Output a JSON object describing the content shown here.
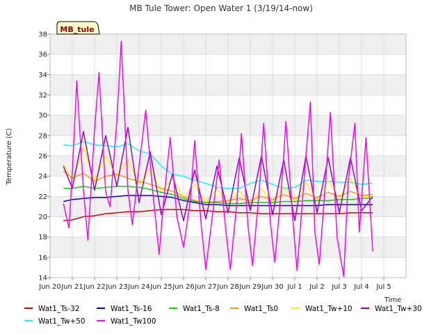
{
  "chart_data": {
    "type": "line",
    "title": "MB Tule Tower: Open Water 1 (3/19/14-now)",
    "xlabel": "Time",
    "ylabel": "Temperature (C)",
    "ylim": [
      14,
      38
    ],
    "xlim": [
      0,
      16
    ],
    "yticks": [
      14,
      16,
      18,
      20,
      22,
      24,
      26,
      28,
      30,
      32,
      34,
      36,
      38
    ],
    "xticks": [
      {
        "pos": 0,
        "label": "Jun 20"
      },
      {
        "pos": 1,
        "label": "Jun 21"
      },
      {
        "pos": 2,
        "label": "Jun 22"
      },
      {
        "pos": 3,
        "label": "Jun 23"
      },
      {
        "pos": 4,
        "label": "Jun 24"
      },
      {
        "pos": 5,
        "label": "Jun 25"
      },
      {
        "pos": 6,
        "label": "Jun 26"
      },
      {
        "pos": 7,
        "label": "Jun 27"
      },
      {
        "pos": 8,
        "label": "Jun 28"
      },
      {
        "pos": 9,
        "label": "Jun 29"
      },
      {
        "pos": 10,
        "label": "Jun 30"
      },
      {
        "pos": 11,
        "label": "Jul 1"
      },
      {
        "pos": 12,
        "label": "Jul 2"
      },
      {
        "pos": 13,
        "label": "Jul 3"
      },
      {
        "pos": 14,
        "label": "Jul 4"
      },
      {
        "pos": 15,
        "label": "Jul 5"
      }
    ],
    "badge": "MB_tule",
    "series": [
      {
        "name": "Wat1_Ts-32",
        "color": "#dd0000",
        "x": [
          0.6,
          1.0,
          1.5,
          2.0,
          2.5,
          3.0,
          3.5,
          4.0,
          4.5,
          5.0,
          5.5,
          6.0,
          6.5,
          7.0,
          7.5,
          8.0,
          8.5,
          9.0,
          9.5,
          10.0,
          10.5,
          11.0,
          11.5,
          12.0,
          12.5,
          13.0,
          13.5,
          14.0,
          14.5
        ],
        "y": [
          19.6,
          19.7,
          20.0,
          20.1,
          20.3,
          20.4,
          20.5,
          20.5,
          20.6,
          20.7,
          20.7,
          20.7,
          20.6,
          20.6,
          20.5,
          20.5,
          20.4,
          20.4,
          20.3,
          20.3,
          20.3,
          20.3,
          20.3,
          20.3,
          20.3,
          20.3,
          20.4,
          20.4,
          20.4
        ]
      },
      {
        "name": "Wat1_Ts-16",
        "color": "#0000cc",
        "x": [
          0.6,
          1.0,
          1.5,
          2.0,
          2.5,
          3.0,
          3.5,
          4.0,
          4.5,
          5.0,
          5.5,
          6.0,
          6.5,
          7.0,
          7.5,
          8.0,
          8.5,
          9.0,
          9.5,
          10.0,
          10.5,
          11.0,
          11.5,
          12.0,
          12.5,
          13.0,
          13.5,
          14.0,
          14.5
        ],
        "y": [
          21.5,
          21.7,
          21.8,
          21.9,
          21.9,
          22.0,
          22.1,
          22.1,
          22.1,
          22.0,
          21.9,
          21.6,
          21.4,
          21.2,
          21.2,
          21.1,
          21.1,
          21.1,
          21.1,
          21.1,
          21.1,
          21.1,
          21.1,
          21.1,
          21.2,
          21.2,
          21.2,
          21.2,
          21.2
        ]
      },
      {
        "name": "Wat1_Ts-8",
        "color": "#00dd00",
        "x": [
          0.6,
          1.0,
          1.5,
          2.0,
          2.5,
          3.0,
          3.5,
          4.0,
          4.5,
          5.0,
          5.5,
          6.0,
          6.5,
          7.0,
          7.5,
          8.0,
          8.5,
          9.0,
          9.5,
          10.0,
          10.5,
          11.0,
          11.5,
          12.0,
          12.5,
          13.0,
          13.5,
          14.0,
          14.5
        ],
        "y": [
          22.8,
          22.8,
          23.0,
          22.8,
          22.9,
          23.0,
          23.0,
          22.9,
          22.7,
          22.4,
          22.2,
          21.8,
          21.5,
          21.4,
          21.4,
          21.3,
          21.3,
          21.4,
          21.4,
          21.4,
          21.5,
          21.5,
          21.6,
          21.6,
          21.6,
          21.7,
          21.7,
          21.8,
          21.8
        ]
      },
      {
        "name": "Wat1_Ts0",
        "color": "#ff9900",
        "x": [
          0.6,
          1.0,
          1.5,
          2.0,
          2.5,
          3.0,
          3.5,
          4.0,
          4.5,
          5.0,
          5.5,
          6.0,
          6.5,
          7.0,
          7.5,
          8.0,
          8.5,
          9.0,
          9.5,
          10.0,
          10.5,
          11.0,
          11.5,
          12.0,
          12.5,
          13.0,
          13.5,
          14.0,
          14.5
        ],
        "y": [
          24.5,
          23.8,
          24.3,
          23.5,
          24.0,
          24.2,
          23.8,
          23.5,
          23.2,
          22.8,
          22.5,
          22.0,
          21.6,
          21.4,
          21.5,
          21.6,
          21.8,
          21.6,
          22.0,
          21.7,
          22.2,
          21.8,
          22.3,
          21.9,
          22.4,
          22.0,
          22.5,
          22.1,
          22.2
        ]
      },
      {
        "name": "Wat1_Tw+10",
        "color": "#ffee00",
        "x": [
          0.6,
          1.0,
          1.5,
          2.0,
          2.5,
          3.0,
          3.5,
          4.0,
          4.5,
          5.0,
          5.5,
          6.0,
          6.5,
          7.0,
          7.5,
          8.0,
          8.5,
          9.0,
          9.5,
          10.0,
          10.5,
          11.0,
          11.5,
          12.0,
          12.5,
          13.0,
          13.5,
          14.0,
          14.5
        ],
        "y": [
          25.2,
          23.6,
          26.8,
          23.6,
          26.0,
          24.0,
          25.6,
          23.2,
          24.8,
          22.4,
          23.8,
          21.8,
          23.2,
          21.4,
          22.8,
          21.2,
          22.6,
          21.2,
          22.8,
          21.4,
          23.0,
          21.4,
          23.4,
          21.6,
          23.6,
          21.8,
          23.8,
          22.0,
          22.0
        ]
      },
      {
        "name": "Wat1_Tw+30",
        "color": "#9900cc",
        "x": [
          0.6,
          1.0,
          1.5,
          2.0,
          2.5,
          3.0,
          3.5,
          4.0,
          4.5,
          5.0,
          5.5,
          6.0,
          6.5,
          7.0,
          7.5,
          8.0,
          8.5,
          9.0,
          9.5,
          10.0,
          10.5,
          11.0,
          11.5,
          12.0,
          12.5,
          13.0,
          13.5,
          14.0,
          14.5
        ],
        "y": [
          25.0,
          22.8,
          28.4,
          22.6,
          28.0,
          23.0,
          28.8,
          21.4,
          26.4,
          20.2,
          24.2,
          19.6,
          24.6,
          19.8,
          25.0,
          20.4,
          25.8,
          20.6,
          26.0,
          20.2,
          25.6,
          19.6,
          26.0,
          20.4,
          25.8,
          20.4,
          25.8,
          20.6,
          22.0
        ]
      },
      {
        "name": "Wat1_Tw+50",
        "color": "#00ffff",
        "x": [
          0.6,
          1.0,
          1.5,
          2.0,
          2.5,
          3.0,
          3.5,
          4.0,
          4.5,
          5.0,
          5.5,
          6.0,
          6.5,
          7.0,
          7.5,
          8.0,
          8.5,
          9.0,
          9.5,
          10.0,
          10.5,
          11.0,
          11.5,
          12.0,
          12.5,
          13.0,
          13.5,
          14.0,
          14.5
        ],
        "y": [
          27.1,
          27.0,
          27.4,
          27.1,
          27.0,
          26.9,
          27.2,
          26.5,
          26.2,
          25.0,
          24.2,
          24.0,
          23.6,
          23.3,
          22.9,
          22.8,
          22.8,
          23.3,
          23.6,
          23.2,
          22.8,
          22.9,
          23.6,
          23.5,
          23.5,
          23.4,
          23.4,
          23.2,
          23.3
        ]
      },
      {
        "name": "Wat1_Tw100",
        "color": "#ff00ff",
        "x": [
          0.6,
          0.85,
          1.0,
          1.2,
          1.5,
          1.7,
          2.0,
          2.2,
          2.5,
          2.7,
          3.0,
          3.2,
          3.5,
          3.7,
          4.0,
          4.3,
          4.6,
          4.9,
          5.1,
          5.4,
          5.7,
          6.0,
          6.3,
          6.5,
          6.8,
          7.0,
          7.4,
          7.6,
          7.9,
          8.1,
          8.4,
          8.6,
          8.9,
          9.1,
          9.4,
          9.6,
          9.9,
          10.1,
          10.4,
          10.6,
          10.9,
          11.1,
          11.5,
          11.7,
          11.9,
          12.1,
          12.4,
          12.6,
          12.9,
          13.2,
          13.4,
          13.7,
          13.9,
          14.2,
          14.5
        ],
        "y": [
          21.3,
          18.9,
          24.4,
          33.4,
          22.6,
          17.7,
          28.6,
          34.2,
          22.4,
          21.0,
          29.4,
          37.3,
          22.6,
          19.2,
          25.0,
          30.5,
          22.8,
          16.3,
          21.4,
          27.8,
          20.0,
          17.0,
          21.5,
          27.5,
          19.0,
          14.8,
          22.0,
          25.6,
          18.6,
          14.8,
          21.5,
          28.2,
          19.0,
          15.2,
          22.5,
          29.2,
          19.5,
          15.5,
          22.8,
          29.4,
          20.0,
          14.7,
          26.0,
          31.3,
          18.5,
          15.3,
          24.0,
          30.3,
          18.0,
          14.1,
          23.5,
          29.2,
          18.5,
          27.8,
          16.6
        ]
      }
    ]
  }
}
